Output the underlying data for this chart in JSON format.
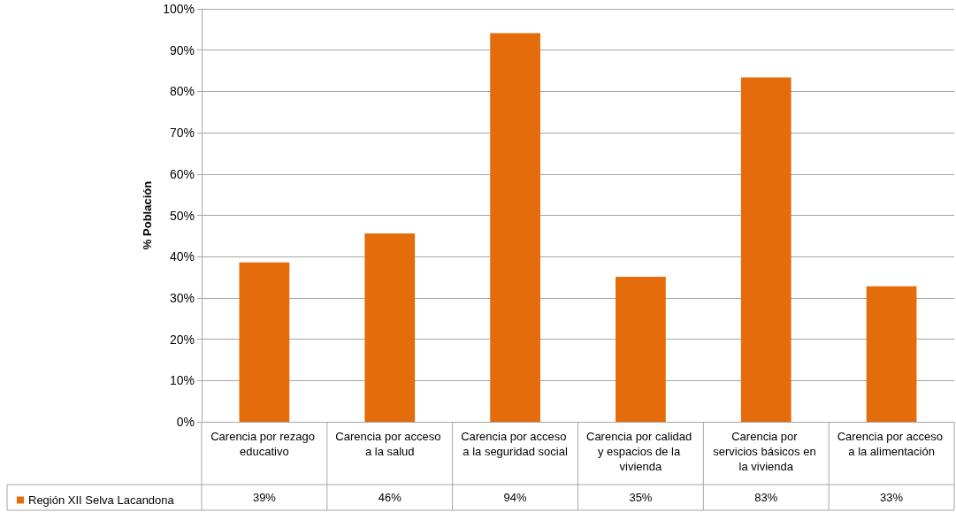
{
  "chart_data": {
    "type": "bar",
    "ylabel": "% Población",
    "categories": [
      "Carencia por rezago educativo",
      "Carencia por acceso a la salud",
      "Carencia por acceso a la seguridad social",
      "Carencia por calidad y espacios de la vivienda",
      "Carencia por servicios básicos en la vivienda",
      "Carencia por acceso a la alimentación"
    ],
    "series": [
      {
        "name": "Región XII Selva Lacandona",
        "color": "#e46c0a",
        "values": [
          38.6,
          45.6,
          94.1,
          35.1,
          83.4,
          32.8
        ],
        "value_labels": [
          "39%",
          "46%",
          "94%",
          "35%",
          "83%",
          "33%"
        ]
      }
    ],
    "ylim": [
      0,
      100
    ],
    "yticks": [
      {
        "value": 0,
        "label": "0%"
      },
      {
        "value": 10,
        "label": "10%"
      },
      {
        "value": 20,
        "label": "20%"
      },
      {
        "value": 30,
        "label": "30%"
      },
      {
        "value": 40,
        "label": "40%"
      },
      {
        "value": 50,
        "label": "50%"
      },
      {
        "value": 60,
        "label": "60%"
      },
      {
        "value": 70,
        "label": "70%"
      },
      {
        "value": 80,
        "label": "80%"
      },
      {
        "value": 90,
        "label": "90%"
      },
      {
        "value": 100,
        "label": "100%"
      }
    ],
    "grid": "y",
    "legend": "bottom left"
  }
}
